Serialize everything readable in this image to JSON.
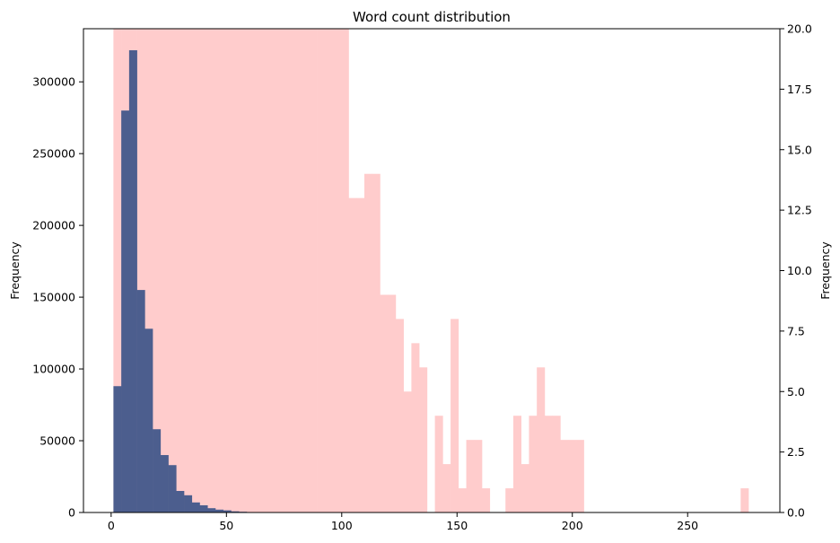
{
  "chart_data": {
    "type": "bar",
    "title": "Word count distribution",
    "xlabel": "",
    "xlim": [
      -12,
      290
    ],
    "x_ticks": [
      "0",
      "50",
      "100",
      "150",
      "200",
      "250"
    ],
    "y_left": {
      "label": "Frequency",
      "lim": [
        0,
        337000
      ],
      "ticks": [
        "0",
        "50000",
        "100000",
        "150000",
        "200000",
        "250000",
        "300000"
      ]
    },
    "y_right": {
      "label": "Frequency",
      "lim": [
        0,
        20
      ],
      "ticks": [
        "0.0",
        "2.5",
        "5.0",
        "7.5",
        "10.0",
        "12.5",
        "15.0",
        "17.5",
        "20.0"
      ]
    },
    "series": [
      {
        "axis": "left",
        "color": "#4c5e8e",
        "bin_width": 3.4,
        "bins_start": [
          1,
          4.4,
          7.8,
          11.2,
          14.6,
          18,
          21.4,
          24.8,
          28.2,
          31.6,
          35,
          38.4,
          41.8,
          45.2,
          48.6,
          52,
          55.4,
          58.8
        ],
        "values": [
          88000,
          280000,
          322000,
          155000,
          128000,
          58000,
          40000,
          33000,
          15000,
          12000,
          7000,
          5000,
          3000,
          2000,
          1500,
          800,
          500,
          200
        ]
      },
      {
        "axis": "right",
        "color": "#ffcccc",
        "bin_width": 3.4,
        "bins_start": [
          1,
          4.4,
          7.8,
          11.2,
          14.6,
          18,
          21.4,
          24.8,
          28.2,
          31.6,
          35,
          38.4,
          41.8,
          45.2,
          48.6,
          52,
          55.4,
          58.8,
          62.2,
          65.6,
          69,
          72.4,
          75.8,
          79.2,
          82.6,
          86,
          89.4,
          92.8,
          96.2,
          99.6,
          103,
          106.4,
          109.8,
          113.2,
          116.6,
          120,
          123.4,
          126.8,
          130.2,
          133.6,
          137,
          140.4,
          143.8,
          147.2,
          150.6,
          154,
          157.4,
          160.8,
          164.2,
          167.6,
          171,
          174.4,
          177.8,
          181.2,
          184.6,
          188,
          191.4,
          194.8,
          198.2,
          201.6,
          205,
          208.4,
          211.8,
          215.2,
          218.6,
          222,
          225.4,
          228.8,
          232.2,
          235.6,
          239,
          242.4,
          245.8,
          249.2,
          252.6,
          256,
          259.4,
          262.8,
          266.2,
          269.6,
          273
        ],
        "values": [
          20,
          20,
          20,
          20,
          20,
          20,
          20,
          20,
          20,
          20,
          20,
          20,
          20,
          20,
          20,
          20,
          20,
          20,
          20,
          20,
          20,
          20,
          20,
          20,
          20,
          20,
          20,
          20,
          20,
          20,
          13,
          13,
          14,
          14,
          9,
          9,
          8,
          5,
          7,
          6,
          0,
          4,
          2,
          8,
          1,
          3,
          3,
          1,
          0,
          0,
          1,
          4,
          2,
          4,
          6,
          4,
          4,
          3,
          3,
          3,
          0,
          0,
          0,
          0,
          0,
          0,
          0,
          0,
          0,
          0,
          0,
          0,
          0,
          0,
          0,
          0,
          0,
          0,
          0,
          0,
          1
        ]
      }
    ],
    "grid": false,
    "legend": "none"
  }
}
